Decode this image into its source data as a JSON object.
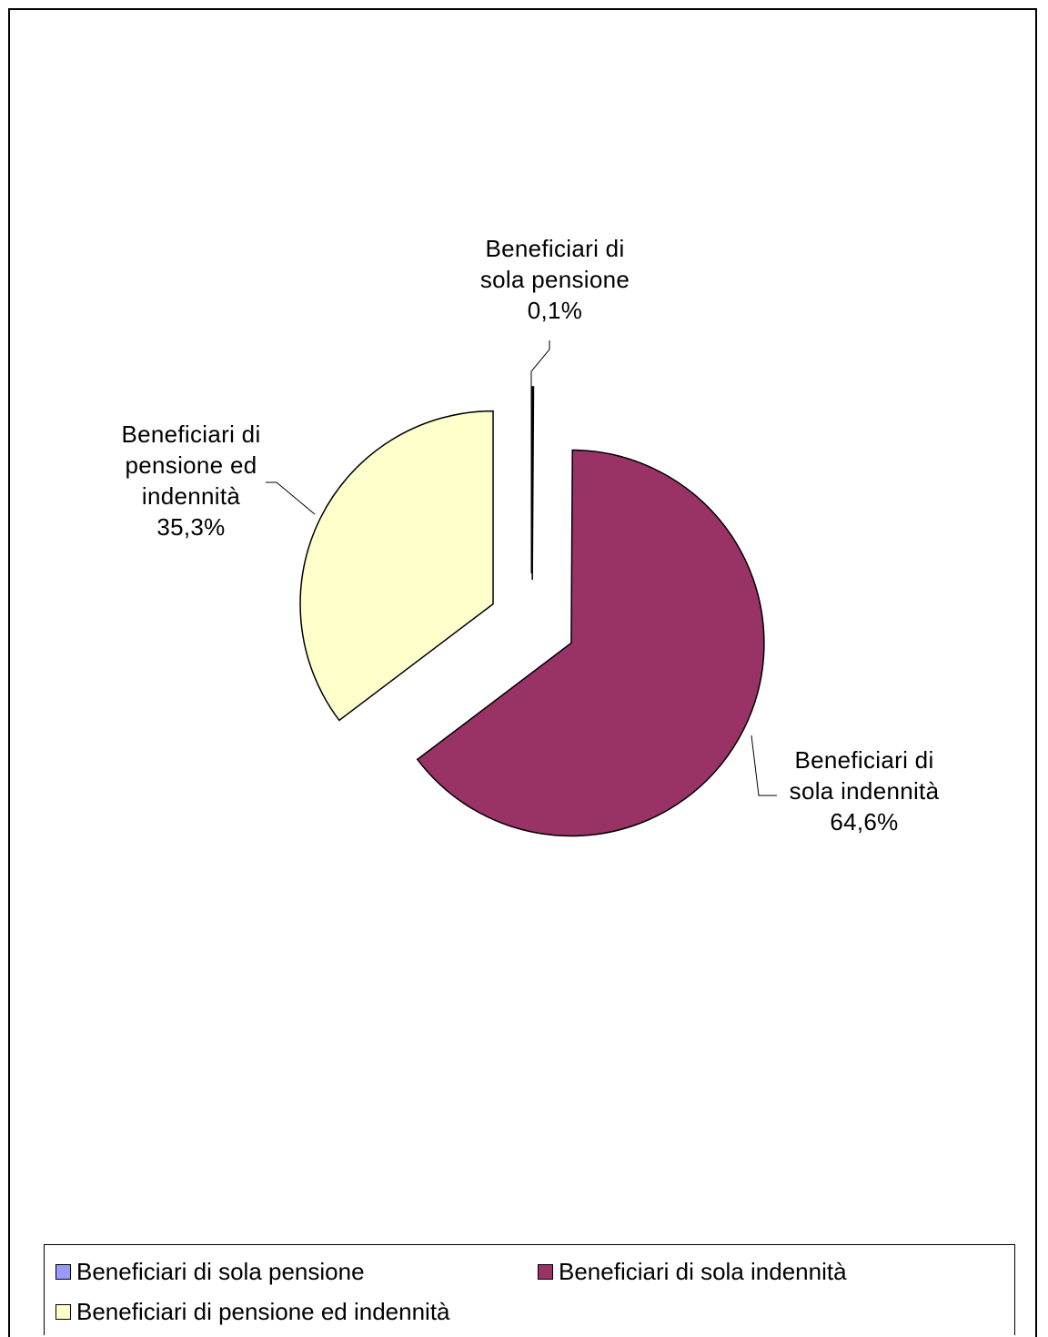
{
  "chart_data": {
    "type": "pie",
    "title": "",
    "slices": [
      {
        "label": "Beneficiari di sola pensione",
        "value": 0.1,
        "display": "0,1%",
        "color": "#9999ff"
      },
      {
        "label": "Beneficiari di sola indennità",
        "value": 64.6,
        "display": "64,6%",
        "color": "#993366"
      },
      {
        "label": "Beneficiari di pensione ed indennità",
        "value": 35.3,
        "display": "35,3%",
        "color": "#ffffcc"
      }
    ],
    "data_labels": [
      {
        "name": "Beneficiari di\nsola pensione",
        "value": "0,1%"
      },
      {
        "name": "Beneficiari di\nsola indennità",
        "value": "64,6%"
      },
      {
        "name": "Beneficiari di\npensione ed\nindennità",
        "value": "35,3%"
      }
    ],
    "legend": {
      "placement": "bottom",
      "entries": [
        "Beneficiari di sola pensione",
        "Beneficiari di sola indennità",
        "Beneficiari di pensione ed indennità"
      ]
    }
  }
}
